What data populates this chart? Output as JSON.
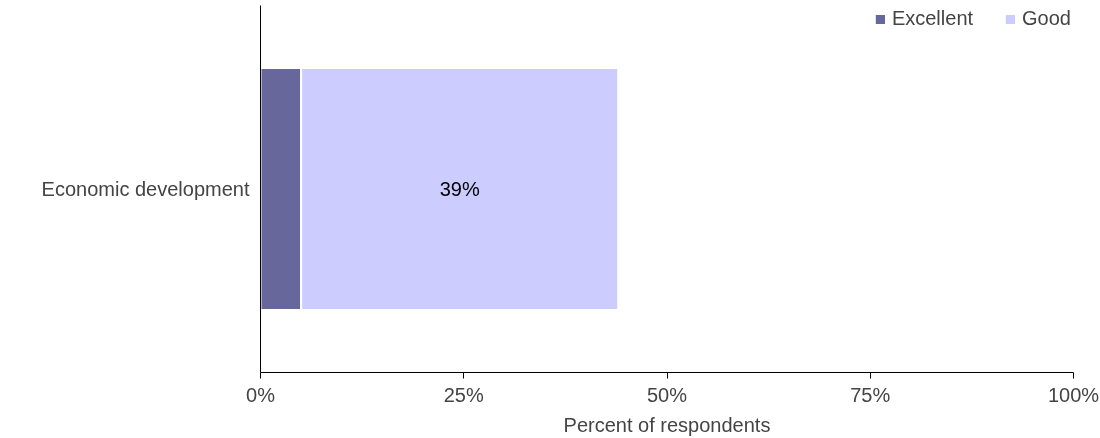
{
  "chart_data": {
    "type": "bar",
    "orientation": "horizontal",
    "stacked": true,
    "categories": [
      "Economic development"
    ],
    "series": [
      {
        "name": "Excellent",
        "color": "#68679b",
        "values": [
          5
        ],
        "value_labels": [
          null
        ]
      },
      {
        "name": "Good",
        "color": "#ccccff",
        "values": [
          39
        ],
        "value_labels": [
          "39%"
        ]
      }
    ],
    "xlabel": "Percent of respondents",
    "xlim": [
      0,
      100
    ],
    "xticks": [
      {
        "value": 0,
        "label": "0%"
      },
      {
        "value": 25,
        "label": "25%"
      },
      {
        "value": 50,
        "label": "50%"
      },
      {
        "value": 75,
        "label": "75%"
      },
      {
        "value": 100,
        "label": "100%"
      }
    ],
    "legend": "top right",
    "grid": false
  }
}
